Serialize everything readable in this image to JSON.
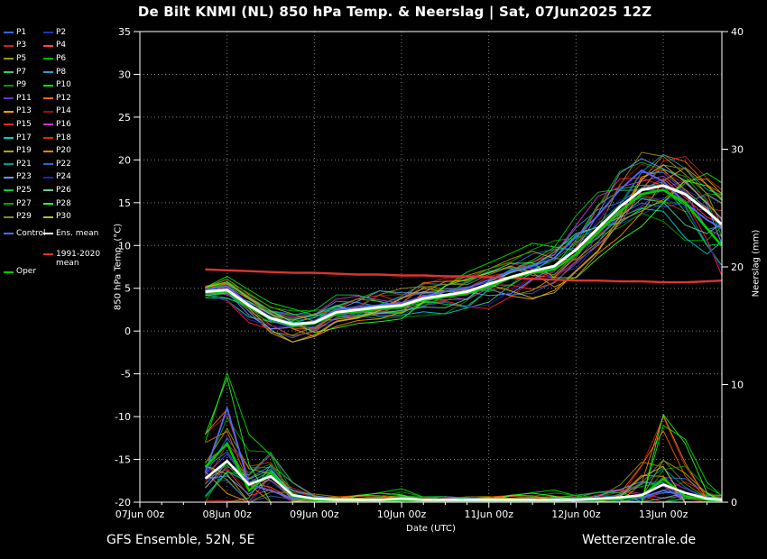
{
  "title": "De Bilt KNMI  (NL)  850 hPa Temp. & Neerslag | Sat, 07Jun2025 12Z",
  "footer_left": "GFS Ensemble, 52N, 5E",
  "footer_right": "Wetterzentrale.de",
  "axes": {
    "left_label": "850 hPa Temp. (°C)",
    "right_label": "Neerslag (mm)",
    "x_label": "Date (UTC)",
    "left_ticks": [
      35,
      30,
      25,
      20,
      15,
      10,
      5,
      0,
      -5,
      -10,
      -15,
      -20
    ],
    "right_ticks": [
      40,
      30,
      20,
      10,
      0
    ],
    "x_tick_labels": [
      "07Jun 00z",
      "08Jun 00z",
      "09Jun 00z",
      "10Jun 00z",
      "11Jun 00z",
      "12Jun 00z",
      "13Jun 00z"
    ]
  },
  "legend": {
    "control": {
      "label": "Control",
      "color": "#5566ff"
    },
    "ens_mean": {
      "label": "Ens. mean",
      "color": "#ffffff"
    },
    "climate": {
      "label": "1991-2020",
      "label2": "mean",
      "color": "#dd3333"
    },
    "oper": {
      "label": "Oper",
      "color": "#00cc00"
    }
  },
  "chart_data": {
    "type": "line",
    "title": "De Bilt KNMI (NL) 850 hPa Temp. & Neerslag, GFS Ensemble run Sat 07Jun2025 12Z",
    "xlabel": "Date (UTC)",
    "ylabel_left": "850 hPa Temp. (°C)",
    "ylabel_right": "Neerslag (mm)",
    "ylim_temp": [
      -20,
      35
    ],
    "ylim_precip": [
      0,
      40
    ],
    "xlim_hours_from_07Jun00z": [
      0,
      160
    ],
    "x_hours": [
      18,
      24,
      30,
      36,
      42,
      48,
      54,
      60,
      66,
      72,
      78,
      84,
      90,
      96,
      102,
      108,
      114,
      120,
      126,
      132,
      138,
      144,
      150,
      156,
      160
    ],
    "ens_mean": [
      4.6,
      4.8,
      3.0,
      1.5,
      0.8,
      1.0,
      2.2,
      2.5,
      2.8,
      3.0,
      3.8,
      4.2,
      4.6,
      5.5,
      6.3,
      7.0,
      7.6,
      9.5,
      12.0,
      14.5,
      16.5,
      17.0,
      16.0,
      14.0,
      12.5
    ],
    "control": [
      4.8,
      5.2,
      3.2,
      1.2,
      0.5,
      1.2,
      2.5,
      2.8,
      3.0,
      3.3,
      4.0,
      4.6,
      5.0,
      6.0,
      7.0,
      7.6,
      8.5,
      11.0,
      13.5,
      16.5,
      18.8,
      17.5,
      15.0,
      13.0,
      12.0
    ],
    "oper": [
      4.4,
      4.6,
      2.8,
      1.4,
      0.6,
      0.9,
      2.0,
      2.3,
      2.6,
      2.9,
      3.6,
      4.0,
      4.4,
      5.2,
      6.2,
      6.8,
      7.2,
      9.0,
      11.5,
      14.0,
      16.0,
      16.5,
      15.0,
      12.0,
      10.0
    ],
    "climate_mean": [
      7.2,
      7.1,
      7.0,
      6.9,
      6.8,
      6.8,
      6.7,
      6.6,
      6.6,
      6.5,
      6.5,
      6.4,
      6.4,
      6.3,
      6.2,
      6.1,
      6.0,
      5.9,
      5.9,
      5.8,
      5.8,
      5.7,
      5.7,
      5.8,
      5.9
    ],
    "spread": [
      0.4,
      0.8,
      1.0,
      1.0,
      1.0,
      1.0,
      1.0,
      1.0,
      1.1,
      1.1,
      1.2,
      1.2,
      1.3,
      1.4,
      1.5,
      1.6,
      1.8,
      2.0,
      2.2,
      2.4,
      2.5,
      2.6,
      2.8,
      3.0,
      3.0
    ],
    "precip_mean": [
      2.0,
      3.5,
      1.5,
      2.2,
      0.6,
      0.3,
      0.2,
      0.2,
      0.2,
      0.3,
      0.2,
      0.2,
      0.2,
      0.2,
      0.2,
      0.2,
      0.2,
      0.2,
      0.3,
      0.4,
      0.6,
      1.5,
      0.8,
      0.3,
      0.2
    ],
    "precip_spread": [
      2.0,
      2.5,
      1.5,
      1.5,
      0.8,
      0.3,
      0.2,
      0.2,
      0.2,
      0.3,
      0.2,
      0.2,
      0.2,
      0.2,
      0.2,
      0.2,
      0.3,
      0.3,
      0.4,
      0.8,
      2.0,
      3.0,
      1.5,
      0.5,
      0.3
    ],
    "precip_control": [
      2.5,
      8.0,
      1.5,
      1.0,
      0.3,
      0.2,
      0.1,
      0.1,
      0.1,
      0.2,
      0.1,
      0.1,
      0.1,
      0.1,
      0.1,
      0.1,
      0.1,
      0.2,
      0.2,
      0.3,
      0.4,
      1.0,
      0.5,
      0.2,
      0.1
    ],
    "precip_oper": [
      3.0,
      5.0,
      1.0,
      2.5,
      0.5,
      0.2,
      0.1,
      0.1,
      0.1,
      0.2,
      0.1,
      0.1,
      0.1,
      0.1,
      0.1,
      0.1,
      0.1,
      0.2,
      0.2,
      0.3,
      0.5,
      2.0,
      0.5,
      0.2,
      0.1
    ],
    "members": [
      {
        "label": "P1",
        "color": "#3366ff",
        "a": 1.0,
        "p": 0.0,
        "b": 0.2,
        "pf": 0.8
      },
      {
        "label": "P2",
        "color": "#2233bb",
        "a": 0.8,
        "p": 0.7,
        "b": -0.3,
        "pf": 0.5
      },
      {
        "label": "P3",
        "color": "#cc2222",
        "a": 1.2,
        "p": 1.4,
        "b": 0.4,
        "pf": 1.2
      },
      {
        "label": "P4",
        "color": "#ff4444",
        "a": 0.6,
        "p": 2.1,
        "b": -0.5,
        "pf": 0.7
      },
      {
        "label": "P5",
        "color": "#999900",
        "a": 1.4,
        "p": 2.8,
        "b": 0.1,
        "pf": 1.0
      },
      {
        "label": "P6",
        "color": "#00bb00",
        "a": 0.9,
        "p": 3.5,
        "b": 0.5,
        "pf": 0.4
      },
      {
        "label": "P7",
        "color": "#33cc66",
        "a": 1.1,
        "p": 4.2,
        "b": -0.2,
        "pf": 1.5
      },
      {
        "label": "P8",
        "color": "#3399cc",
        "a": 0.7,
        "p": 4.9,
        "b": 0.3,
        "pf": 0.6
      },
      {
        "label": "P9",
        "color": "#009900",
        "a": 1.3,
        "p": 5.6,
        "b": -0.4,
        "pf": 0.9
      },
      {
        "label": "P10",
        "color": "#00ee00",
        "a": 1.5,
        "p": 0.3,
        "b": 0.6,
        "pf": 1.5
      },
      {
        "label": "P11",
        "color": "#6633cc",
        "a": 0.6,
        "p": 1.0,
        "b": -0.1,
        "pf": 0.5
      },
      {
        "label": "P12",
        "color": "#ff6600",
        "a": 1.0,
        "p": 1.7,
        "b": 0.4,
        "pf": 1.1
      },
      {
        "label": "P13",
        "color": "#ff9900",
        "a": 1.2,
        "p": 2.4,
        "b": -0.6,
        "pf": 1.4
      },
      {
        "label": "P14",
        "color": "#991111",
        "a": 0.8,
        "p": 3.1,
        "b": 0.2,
        "pf": 0.6
      },
      {
        "label": "P15",
        "color": "#ff2222",
        "a": 1.4,
        "p": 3.8,
        "b": -0.3,
        "pf": 0.8
      },
      {
        "label": "P16",
        "color": "#cc33cc",
        "a": 0.9,
        "p": 4.5,
        "b": 0.5,
        "pf": 1.0
      },
      {
        "label": "P17",
        "color": "#00cccc",
        "a": 1.1,
        "p": 5.2,
        "b": -0.5,
        "pf": 0.5
      },
      {
        "label": "P18",
        "color": "#cc3300",
        "a": 0.7,
        "p": 5.9,
        "b": 0.1,
        "pf": 1.3
      },
      {
        "label": "P19",
        "color": "#aaaa00",
        "a": 1.3,
        "p": 0.5,
        "b": 0.3,
        "pf": 0.7
      },
      {
        "label": "P20",
        "color": "#ff8800",
        "a": 1.5,
        "p": 1.2,
        "b": -0.2,
        "pf": 1.6
      },
      {
        "label": "P21",
        "color": "#009999",
        "a": 0.6,
        "p": 1.9,
        "b": 0.6,
        "pf": 0.4
      },
      {
        "label": "P22",
        "color": "#3366cc",
        "a": 1.0,
        "p": 2.6,
        "b": -0.4,
        "pf": 0.9
      },
      {
        "label": "P23",
        "color": "#6699ff",
        "a": 1.2,
        "p": 3.3,
        "b": 0.2,
        "pf": 0.6
      },
      {
        "label": "P24",
        "color": "#2222cc",
        "a": 0.8,
        "p": 4.0,
        "b": -0.6,
        "pf": 1.1
      },
      {
        "label": "P25",
        "color": "#00cc33",
        "a": 1.4,
        "p": 4.7,
        "b": 0.4,
        "pf": 0.8
      },
      {
        "label": "P26",
        "color": "#66cc99",
        "a": 0.9,
        "p": 5.4,
        "b": -0.1,
        "pf": 0.5
      },
      {
        "label": "P27",
        "color": "#00aa00",
        "a": 1.1,
        "p": 6.1,
        "b": 0.5,
        "pf": 1.2
      },
      {
        "label": "P28",
        "color": "#33ff33",
        "a": 1.6,
        "p": 0.8,
        "b": -0.3,
        "pf": 2.2
      },
      {
        "label": "P29",
        "color": "#888822",
        "a": 0.7,
        "p": 1.5,
        "b": 0.3,
        "pf": 0.7
      },
      {
        "label": "P30",
        "color": "#bbbb33",
        "a": 1.3,
        "p": 2.2,
        "b": -0.5,
        "pf": 1.0
      }
    ]
  }
}
